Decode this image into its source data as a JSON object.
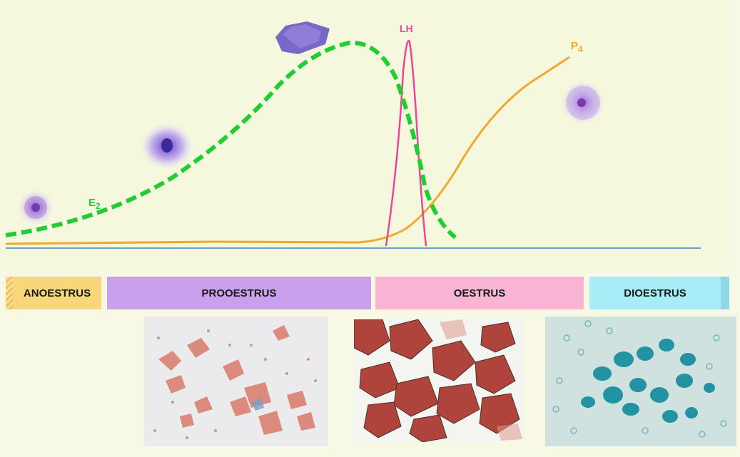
{
  "hormones": {
    "e2": {
      "base": "E",
      "sub": "2",
      "color": "#22cc33"
    },
    "lh": {
      "label": "LH",
      "color": "#e8479a"
    },
    "p4": {
      "base": "P",
      "sub": "4",
      "color": "#f0a830"
    }
  },
  "phases": [
    {
      "key": "anoestrus",
      "label": "ANOESTRUS",
      "color": "#f7d77a"
    },
    {
      "key": "prooestrus",
      "label": "PROOESTRUS",
      "color": "#c8a0ec"
    },
    {
      "key": "oestrus",
      "label": "OESTRUS",
      "color": "#f8b4d2"
    },
    {
      "key": "dioestrus",
      "label": "DIOESTRUS",
      "color": "#a8ecf8"
    }
  ],
  "colors": {
    "background": "#f7f9e4",
    "baseline": "#6f9fc8",
    "cell_purple": "#8a5fd0",
    "smear_oestrus": "#a8322a",
    "smear_prooestrus": "#d97a6a",
    "smear_dioestrus": "#1a8ea0"
  }
}
